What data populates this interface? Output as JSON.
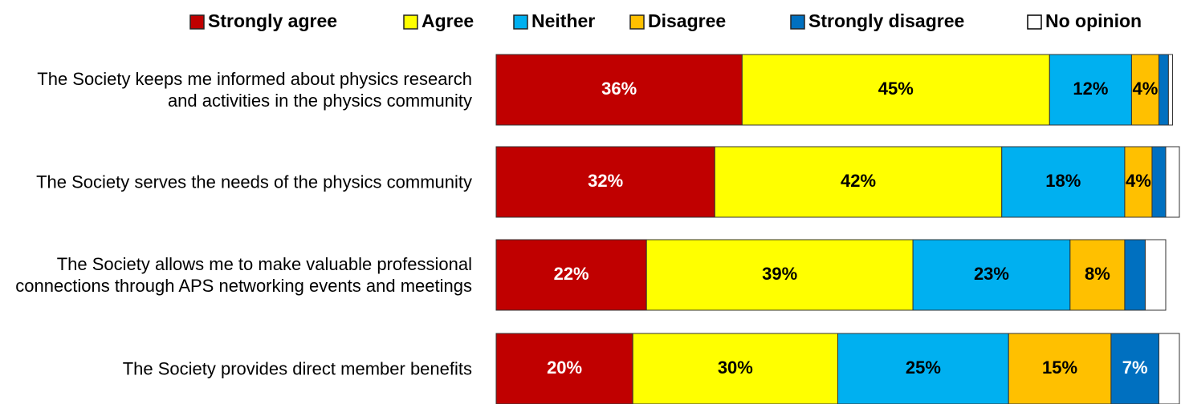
{
  "chart_data": {
    "type": "stacked_barh",
    "categories": [
      "The Society keeps me informed about physics research and activities in the physics community",
      "The Society serves the needs of the physics community",
      "The Society allows me to make valuable professional connections through APS networking events and meetings",
      "The Society provides direct member benefits"
    ],
    "xlim": [
      0,
      100
    ],
    "legend": "top",
    "series": [
      {
        "name": "Strongly agree",
        "color": "#c00000",
        "values": [
          36,
          32,
          22,
          20
        ],
        "value_labels": [
          "36%",
          "32%",
          "22%",
          "20%"
        ]
      },
      {
        "name": "Agree",
        "color": "#ffff00",
        "values": [
          45,
          42,
          39,
          30
        ],
        "value_labels": [
          "45%",
          "42%",
          "39%",
          "30%"
        ]
      },
      {
        "name": "Neither",
        "color": "#00b0f0",
        "values": [
          12,
          18,
          23,
          25
        ],
        "value_labels": [
          "12%",
          "18%",
          "23%",
          "25%"
        ]
      },
      {
        "name": "Disagree",
        "color": "#ffc000",
        "values": [
          4,
          4,
          8,
          15
        ],
        "value_labels": [
          "4%",
          "4%",
          "8%",
          "15%"
        ]
      },
      {
        "name": "Strongly disagree",
        "color": "#0070c0",
        "values": [
          1.4,
          2,
          3,
          7
        ],
        "value_labels": [
          null,
          null,
          null,
          "7%"
        ]
      },
      {
        "name": "No opinion",
        "color": "#ffffff",
        "values": [
          0.6,
          2,
          3,
          3
        ],
        "value_labels": [
          null,
          null,
          null,
          null
        ]
      }
    ]
  }
}
